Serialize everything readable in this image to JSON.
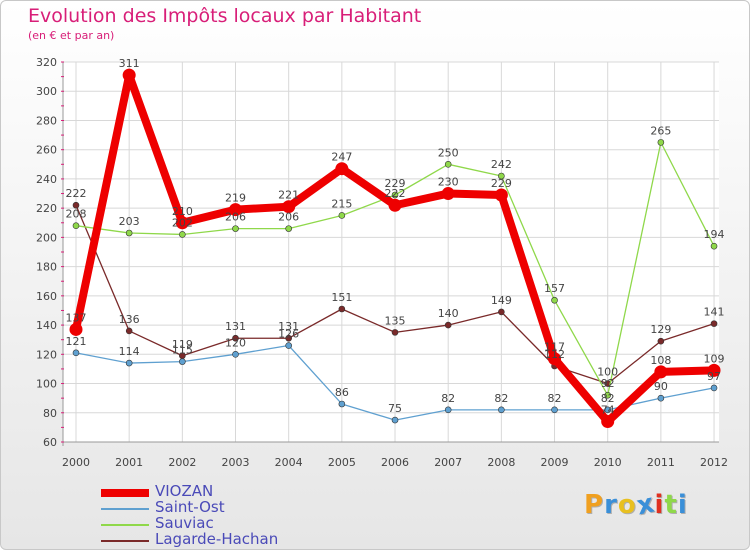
{
  "title": "Evolution des Impôts locaux par Habitant",
  "subtitle": "(en € et par an)",
  "logo": "Proxiti",
  "chart_data": {
    "type": "line",
    "title": "Evolution des Impôts locaux par Habitant",
    "subtitle": "(en € et par an)",
    "xlabel": "",
    "ylabel": "",
    "categories": [
      "2000",
      "2001",
      "2002",
      "2003",
      "2004",
      "2005",
      "2006",
      "2007",
      "2008",
      "2009",
      "2010",
      "2011",
      "2012"
    ],
    "ylim": [
      60,
      320
    ],
    "yticks": [
      60,
      80,
      100,
      120,
      140,
      160,
      180,
      200,
      220,
      240,
      260,
      280,
      300,
      320
    ],
    "grid": true,
    "legend": "bottom-left",
    "series": [
      {
        "name": "VIOZAN",
        "color": "#ee0000",
        "values": [
          137,
          311,
          210,
          219,
          221,
          247,
          222,
          230,
          229,
          117,
          74,
          108,
          109
        ]
      },
      {
        "name": "Saint-Ost",
        "color": "#5fa0d0",
        "values": [
          121,
          114,
          115,
          120,
          126,
          86,
          75,
          82,
          82,
          82,
          82,
          90,
          97
        ]
      },
      {
        "name": "Sauviac",
        "color": "#8fd84a",
        "values": [
          208,
          203,
          202,
          206,
          206,
          215,
          229,
          250,
          242,
          157,
          92,
          265,
          194
        ]
      },
      {
        "name": "Lagarde-Hachan",
        "color": "#7a2a2a",
        "values": [
          222,
          136,
          119,
          131,
          131,
          151,
          135,
          140,
          149,
          112,
          100,
          129,
          141
        ]
      }
    ]
  }
}
